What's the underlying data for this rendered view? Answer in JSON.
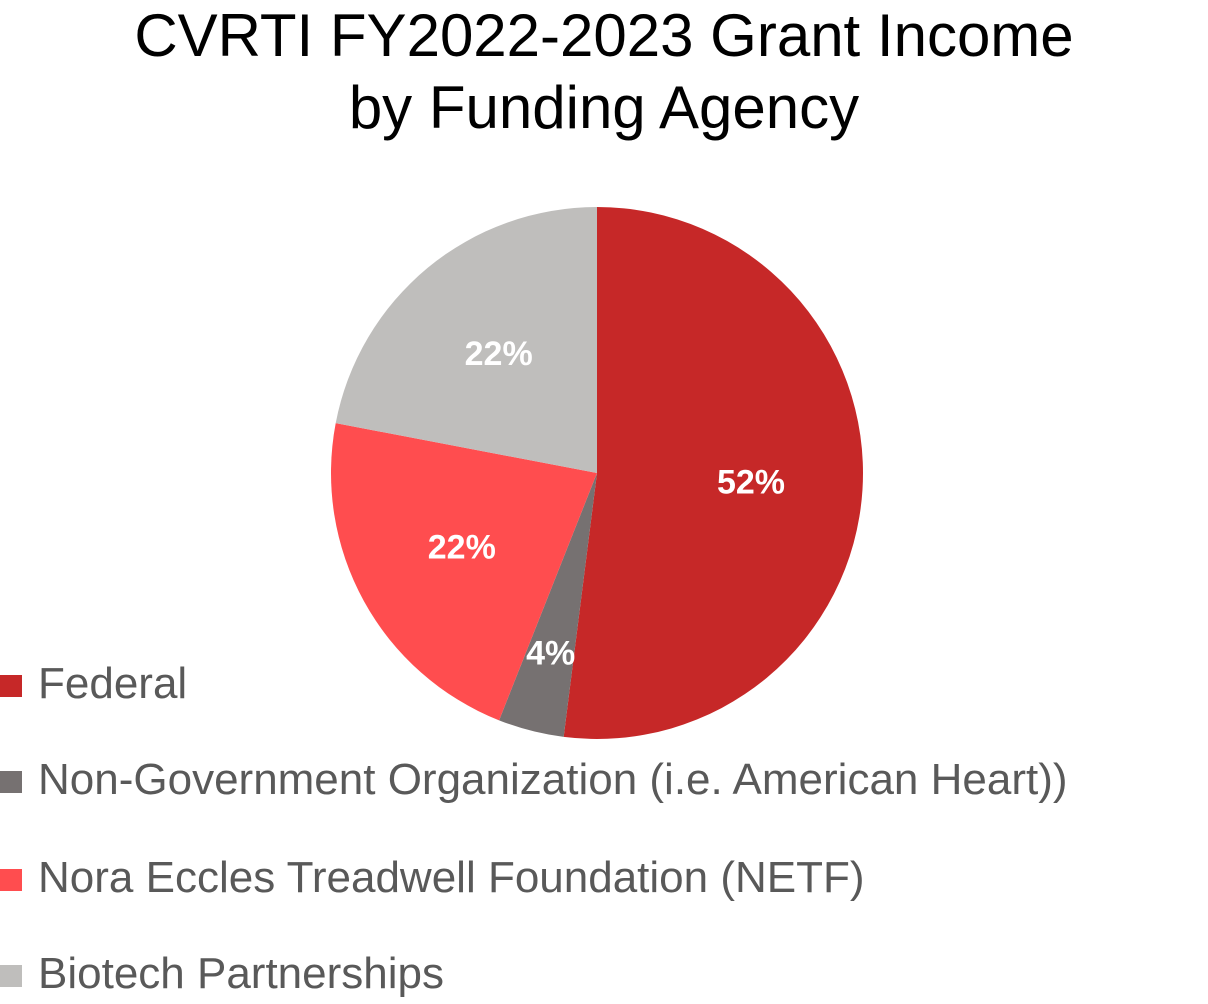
{
  "chart_data": {
    "type": "pie",
    "title_lines": [
      "CVRTI FY2022-2023 Grant Income",
      "by Funding Agency"
    ],
    "categories": [
      "Federal",
      "Non-Government Organization (i.e. American Heart))",
      "Nora Eccles Treadwell Foundation (NETF)",
      "Biotech Partnerships"
    ],
    "values": [
      52,
      4,
      22,
      22
    ],
    "data_labels": [
      "52%",
      "4%",
      "22%",
      "22%"
    ],
    "colors": [
      "#C62828",
      "#767171",
      "#FF4D4F",
      "#BFBEBC"
    ],
    "start": "12 o'clock, clockwise",
    "legend_position": "bottom-left"
  }
}
